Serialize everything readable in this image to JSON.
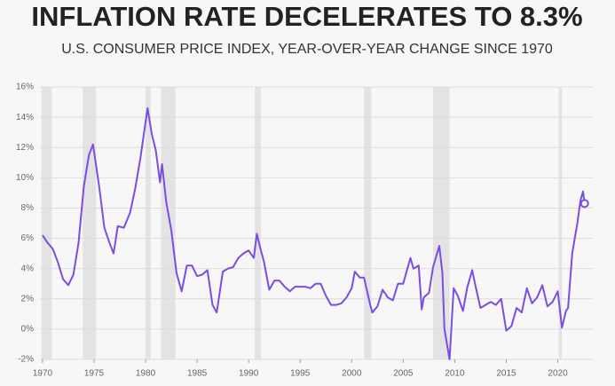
{
  "chart_data": {
    "type": "line",
    "title": "INFLATION RATE DECELERATES TO 8.3%",
    "subtitle": "U.S. CONSUMER PRICE INDEX, YEAR-OVER-YEAR CHANGE SINCE 1970",
    "color": "#7a4de3",
    "recession_color": "#e3e3e3",
    "grid": true,
    "x": [
      1970.0,
      1970.5,
      1971.0,
      1971.5,
      1972.0,
      1972.5,
      1973.0,
      1973.5,
      1974.0,
      1974.5,
      1974.9,
      1975.5,
      1976.0,
      1976.5,
      1976.9,
      1977.3,
      1977.9,
      1978.5,
      1979.0,
      1979.5,
      1980.2,
      1980.6,
      1981.0,
      1981.4,
      1981.6,
      1982.0,
      1982.5,
      1983.0,
      1983.5,
      1984.0,
      1984.5,
      1985.0,
      1985.5,
      1986.0,
      1986.5,
      1986.9,
      1987.5,
      1988.0,
      1988.5,
      1989.0,
      1989.5,
      1990.0,
      1990.5,
      1990.8,
      1991.0,
      1991.5,
      1992.0,
      1992.5,
      1993.0,
      1993.5,
      1994.0,
      1994.5,
      1995.0,
      1995.5,
      1996.0,
      1996.5,
      1997.0,
      1997.5,
      1998.0,
      1998.5,
      1999.0,
      1999.5,
      2000.0,
      2000.3,
      2000.8,
      2001.2,
      2001.8,
      2002.0,
      2002.5,
      2003.0,
      2003.5,
      2004.0,
      2004.5,
      2005.0,
      2005.7,
      2006.0,
      2006.5,
      2006.8,
      2007.0,
      2007.5,
      2007.9,
      2008.5,
      2008.8,
      2009.0,
      2009.5,
      2009.9,
      2010.3,
      2010.8,
      2011.2,
      2011.7,
      2012.0,
      2012.5,
      2013.0,
      2013.5,
      2014.0,
      2014.5,
      2015.0,
      2015.5,
      2016.0,
      2016.5,
      2017.0,
      2017.5,
      2018.0,
      2018.5,
      2019.0,
      2019.5,
      2020.0,
      2020.4,
      2020.8,
      2021.0,
      2021.4,
      2021.9,
      2022.2,
      2022.45,
      2022.6
    ],
    "values": [
      6.2,
      5.7,
      5.3,
      4.4,
      3.3,
      2.9,
      3.6,
      5.7,
      9.4,
      11.5,
      12.2,
      9.4,
      6.7,
      5.7,
      5.0,
      6.8,
      6.7,
      7.7,
      9.3,
      11.3,
      14.6,
      12.9,
      11.8,
      9.7,
      10.9,
      8.4,
      6.5,
      3.7,
      2.5,
      4.2,
      4.2,
      3.5,
      3.6,
      3.9,
      1.6,
      1.1,
      3.8,
      4.0,
      4.1,
      4.7,
      5.0,
      5.2,
      4.7,
      6.3,
      5.7,
      4.4,
      2.6,
      3.2,
      3.2,
      2.8,
      2.5,
      2.8,
      2.8,
      2.8,
      2.7,
      3.0,
      3.0,
      2.2,
      1.6,
      1.6,
      1.7,
      2.1,
      2.7,
      3.8,
      3.4,
      3.4,
      1.6,
      1.1,
      1.5,
      2.6,
      2.1,
      1.9,
      3.0,
      3.0,
      4.7,
      4.0,
      4.2,
      1.3,
      2.1,
      2.4,
      4.1,
      5.5,
      3.7,
      0.0,
      -2.0,
      2.7,
      2.2,
      1.2,
      2.7,
      3.9,
      2.9,
      1.4,
      1.6,
      1.8,
      1.6,
      2.0,
      -0.1,
      0.2,
      1.4,
      1.1,
      2.7,
      1.7,
      2.1,
      2.9,
      1.5,
      1.8,
      2.5,
      0.1,
      1.2,
      1.4,
      5.0,
      7.0,
      8.5,
      9.1,
      8.3
    ],
    "recessions": [
      [
        1969.9,
        1970.9
      ],
      [
        1973.9,
        1975.2
      ],
      [
        1980.0,
        1980.5
      ],
      [
        1981.5,
        1982.9
      ],
      [
        1990.6,
        1991.2
      ],
      [
        2001.2,
        2001.9
      ],
      [
        2007.9,
        2009.5
      ],
      [
        2020.1,
        2020.4
      ]
    ],
    "xlim": [
      1969.75,
      2023.4
    ],
    "ylim": [
      -2,
      16
    ],
    "xticks": [
      1970,
      1975,
      1980,
      1985,
      1990,
      1995,
      2000,
      2005,
      2010,
      2015,
      2020
    ],
    "yticks": [
      {
        "value": -2,
        "label": "-2%"
      },
      {
        "value": 0,
        "label": "0%"
      },
      {
        "value": 2,
        "label": "2%"
      },
      {
        "value": 4,
        "label": "4%"
      },
      {
        "value": 6,
        "label": "6%"
      },
      {
        "value": 8,
        "label": "8%"
      },
      {
        "value": 10,
        "label": "10%"
      },
      {
        "value": 12,
        "label": "12%"
      },
      {
        "value": 14,
        "label": "14%"
      },
      {
        "value": 16,
        "label": "16%"
      }
    ]
  }
}
